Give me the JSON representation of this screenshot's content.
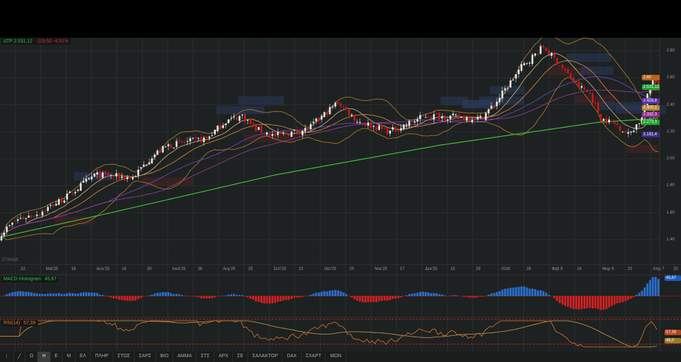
{
  "header": {
    "symbol": "ΔΤΡ",
    "price": "2.531,12",
    "change": "-119,50",
    "change_pct": "-4,51%",
    "watermark": "ZTRADE"
  },
  "price_tags": [
    {
      "label": "2.60",
      "color": "#b5651d",
      "value": 2.6
    },
    {
      "label": "2.531,12",
      "color": "#1e9e2c",
      "value": 2.531
    },
    {
      "label": "2.428,8",
      "color": "#5b2fb0",
      "value": 2.428
    },
    {
      "label": "2.400,1",
      "color": "#b8862c",
      "value": 2.4
    },
    {
      "label": "2.332,3",
      "color": "#8a2a8a",
      "value": 2.332
    },
    {
      "label": "2.273,3",
      "color": "#1e9e2c",
      "value": 2.273
    },
    {
      "label": "2.181,4",
      "color": "#3a2f8a",
      "value": 2.181
    }
  ],
  "chart_data": {
    "type": "candlestick",
    "y_ticks": [
      "2.80",
      "2.60",
      "2.40",
      "2.20",
      "2.00",
      "1.80",
      "1.60",
      "1.40"
    ],
    "y_tick_values": [
      2.8,
      2.6,
      2.4,
      2.2,
      2.0,
      1.8,
      1.6,
      1.4
    ],
    "ylim": [
      1.35,
      2.9
    ],
    "x_ticks": [
      "22",
      "Μαϊ'25",
      "19",
      "Ιουν'25",
      "16",
      "30",
      "Ιουλ'25",
      "28",
      "Αυγ'25",
      "25",
      "Σεπ'25",
      "22",
      "Οκτ'25",
      "20",
      "Νοε'25",
      "17",
      "Δεκ'25",
      "15",
      "29",
      "2026",
      "26",
      "Φεβ 9",
      "24",
      "Μαρ 9",
      "23",
      "Απρ 7",
      "20"
    ],
    "price_path": [
      [
        0,
        1.45
      ],
      [
        6,
        1.55
      ],
      [
        14,
        1.6
      ],
      [
        24,
        1.72
      ],
      [
        34,
        1.88
      ],
      [
        48,
        1.86
      ],
      [
        55,
        2.02
      ],
      [
        61,
        2.1
      ],
      [
        67,
        2.12
      ],
      [
        75,
        2.15
      ],
      [
        82,
        2.28
      ],
      [
        88,
        2.32
      ],
      [
        93,
        2.22
      ],
      [
        100,
        2.17
      ],
      [
        112,
        2.22
      ],
      [
        123,
        2.42
      ],
      [
        130,
        2.28
      ],
      [
        142,
        2.2
      ],
      [
        155,
        2.32
      ],
      [
        175,
        2.3
      ],
      [
        180,
        2.4
      ],
      [
        190,
        2.68
      ],
      [
        198,
        2.83
      ],
      [
        203,
        2.72
      ],
      [
        210,
        2.55
      ],
      [
        215,
        2.48
      ],
      [
        219,
        2.3
      ],
      [
        225,
        2.25
      ],
      [
        229,
        2.18
      ],
      [
        234,
        2.3
      ],
      [
        238,
        2.62
      ],
      [
        240,
        2.53
      ]
    ],
    "ma200_path": [
      [
        0,
        1.42
      ],
      [
        40,
        1.6
      ],
      [
        100,
        1.88
      ],
      [
        160,
        2.1
      ],
      [
        218,
        2.27
      ],
      [
        240,
        2.3
      ]
    ]
  },
  "macd": {
    "label": "MACD-Histogram",
    "value": "45,67"
  },
  "rsi": {
    "label": "RSI(14)",
    "value": "57,39",
    "ma_value": "46,0"
  },
  "toolbar": {
    "items": [
      "⋮",
      "╱",
      "Ω",
      "Η",
      "Ε",
      "Μ",
      "ΕΛ",
      "ΠΛΗΡ",
      "ΣΤΟΣ",
      "ΣΑΡΣ",
      "ΒΙΟ",
      "ΑΜΜΑ",
      "ΣΤΣ",
      "ΑΡΧ",
      "ΣΕ",
      "ΣΑΛΑΚΤΟΡ",
      "DAX",
      "ΣΧΑΡΤ",
      "ΜΟΝ"
    ],
    "active": 3
  }
}
